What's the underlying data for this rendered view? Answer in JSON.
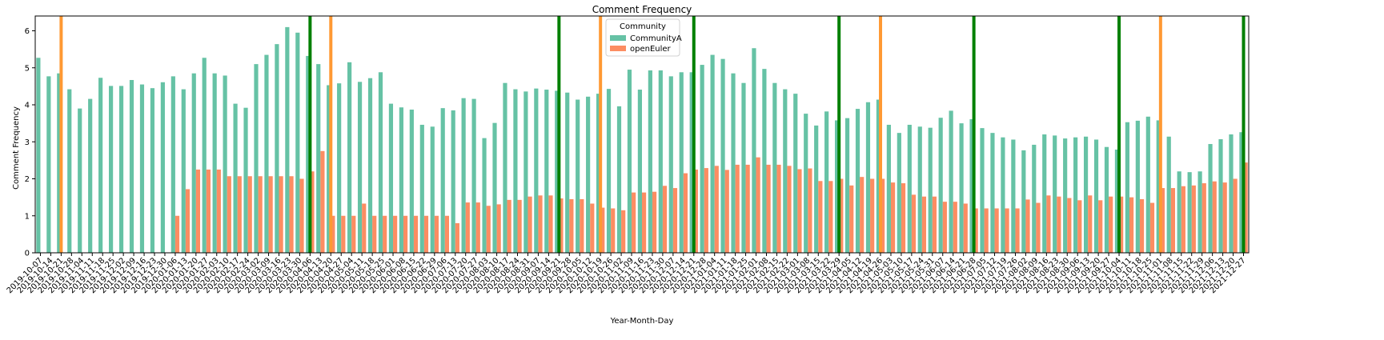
{
  "chart_data": {
    "type": "bar",
    "title": "Comment Frequency",
    "xlabel": "Year-Month-Day",
    "ylabel": "Comment Frequency",
    "ylim": [
      0,
      6.4
    ],
    "yticks": [
      0,
      1,
      2,
      3,
      4,
      5,
      6
    ],
    "grid": false,
    "legend": {
      "title": "Community",
      "placement": "top-center"
    },
    "categories": [
      "2019-10-07",
      "2019-10-14",
      "2019-10-21",
      "2019-10-28",
      "2019-11-04",
      "2019-11-11",
      "2019-11-18",
      "2019-11-25",
      "2019-12-02",
      "2019-12-09",
      "2019-12-16",
      "2019-12-23",
      "2019-12-30",
      "2020-01-06",
      "2020-01-13",
      "2020-01-20",
      "2020-01-27",
      "2020-02-03",
      "2020-02-10",
      "2020-02-17",
      "2020-02-24",
      "2020-03-02",
      "2020-03-09",
      "2020-03-16",
      "2020-03-23",
      "2020-03-30",
      "2020-04-06",
      "2020-04-13",
      "2020-04-20",
      "2020-04-27",
      "2020-05-04",
      "2020-05-11",
      "2020-05-18",
      "2020-05-25",
      "2020-06-01",
      "2020-06-08",
      "2020-06-15",
      "2020-06-22",
      "2020-06-29",
      "2020-07-06",
      "2020-07-13",
      "2020-07-20",
      "2020-07-27",
      "2020-08-03",
      "2020-08-10",
      "2020-08-17",
      "2020-08-24",
      "2020-08-31",
      "2020-09-07",
      "2020-09-14",
      "2020-09-21",
      "2020-09-28",
      "2020-10-05",
      "2020-10-12",
      "2020-10-19",
      "2020-10-26",
      "2020-11-02",
      "2020-11-09",
      "2020-11-16",
      "2020-11-23",
      "2020-11-30",
      "2020-12-07",
      "2020-12-14",
      "2020-12-21",
      "2020-12-28",
      "2021-01-04",
      "2021-01-11",
      "2021-01-18",
      "2021-01-25",
      "2021-02-01",
      "2021-02-08",
      "2021-02-15",
      "2021-02-22",
      "2021-03-01",
      "2021-03-08",
      "2021-03-15",
      "2021-03-22",
      "2021-03-29",
      "2021-04-05",
      "2021-04-12",
      "2021-04-19",
      "2021-04-26",
      "2021-05-03",
      "2021-05-10",
      "2021-05-17",
      "2021-05-24",
      "2021-05-31",
      "2021-06-07",
      "2021-06-14",
      "2021-06-21",
      "2021-06-28",
      "2021-07-05",
      "2021-07-12",
      "2021-07-19",
      "2021-07-26",
      "2021-08-02",
      "2021-08-09",
      "2021-08-16",
      "2021-08-23",
      "2021-08-30",
      "2021-09-06",
      "2021-09-13",
      "2021-09-20",
      "2021-09-27",
      "2021-10-04",
      "2021-10-11",
      "2021-10-18",
      "2021-10-25",
      "2021-11-01",
      "2021-11-08",
      "2021-11-15",
      "2021-11-22",
      "2021-11-29",
      "2021-12-06",
      "2021-12-13",
      "2021-12-20",
      "2021-12-27"
    ],
    "series": [
      {
        "name": "CommunityA",
        "color": "#66c2a5",
        "values": [
          5.27,
          4.77,
          4.85,
          4.42,
          3.9,
          4.16,
          4.73,
          4.51,
          4.51,
          4.67,
          4.55,
          4.45,
          4.61,
          4.77,
          4.42,
          4.85,
          5.27,
          4.85,
          4.79,
          4.03,
          3.92,
          5.1,
          5.35,
          5.64,
          6.1,
          5.95,
          5.32,
          5.1,
          4.53,
          4.58,
          5.15,
          4.62,
          4.72,
          4.88,
          4.03,
          3.93,
          3.87,
          3.46,
          3.41,
          3.91,
          3.85,
          4.18,
          4.16,
          3.1,
          3.51,
          4.59,
          4.42,
          4.36,
          4.44,
          4.41,
          4.38,
          4.33,
          4.14,
          4.22,
          4.3,
          4.43,
          3.96,
          4.95,
          4.41,
          4.93,
          4.93,
          4.77,
          4.88,
          4.88,
          5.08,
          5.35,
          5.24,
          4.85,
          4.59,
          5.53,
          4.97,
          4.59,
          4.42,
          4.3,
          3.76,
          3.44,
          3.82,
          3.58,
          3.64,
          3.89,
          4.07,
          4.14,
          3.46,
          3.24,
          3.46,
          3.41,
          3.38,
          3.65,
          3.84,
          3.5,
          3.61,
          3.37,
          3.24,
          3.12,
          3.06,
          2.77,
          2.92,
          3.2,
          3.17,
          3.09,
          3.12,
          3.14,
          3.06,
          2.86,
          2.79,
          3.53,
          3.57,
          3.68,
          3.58,
          3.14,
          2.2,
          2.18,
          2.2,
          2.94,
          3.07,
          3.2,
          3.26
        ]
      },
      {
        "name": "openEuler",
        "color": "#fc8d62",
        "values": [
          0,
          0,
          0,
          0,
          0,
          0,
          0,
          0,
          0,
          0,
          0,
          0,
          0,
          1.0,
          1.72,
          2.25,
          2.25,
          2.25,
          2.07,
          2.07,
          2.07,
          2.07,
          2.07,
          2.07,
          2.07,
          2.0,
          2.2,
          2.75,
          1.0,
          1.0,
          1.0,
          1.33,
          1.0,
          1.0,
          1.0,
          1.0,
          1.0,
          1.0,
          1.0,
          1.0,
          0.8,
          1.36,
          1.36,
          1.27,
          1.31,
          1.43,
          1.43,
          1.52,
          1.55,
          1.55,
          1.47,
          1.45,
          1.45,
          1.33,
          1.22,
          1.2,
          1.15,
          1.63,
          1.63,
          1.65,
          1.81,
          1.75,
          2.15,
          2.25,
          2.29,
          2.35,
          2.24,
          2.38,
          2.38,
          2.58,
          2.38,
          2.38,
          2.35,
          2.26,
          2.28,
          1.94,
          1.94,
          2.0,
          1.82,
          2.05,
          2.0,
          2.0,
          1.9,
          1.88,
          1.57,
          1.52,
          1.52,
          1.38,
          1.38,
          1.33,
          1.2,
          1.2,
          1.2,
          1.2,
          1.2,
          1.44,
          1.35,
          1.55,
          1.52,
          1.48,
          1.42,
          1.55,
          1.42,
          1.52,
          1.52,
          1.5,
          1.45,
          1.35,
          1.75,
          1.75,
          1.8,
          1.82,
          1.88,
          1.93,
          1.9,
          2.0,
          2.44
        ]
      }
    ],
    "vertical_lines": [
      {
        "x": "2019-10-21",
        "color": "#ff9933",
        "width": 4
      },
      {
        "x": "2020-04-06",
        "color": "#008000",
        "width": 4
      },
      {
        "x": "2020-04-20",
        "color": "#ff9933",
        "width": 4
      },
      {
        "x": "2020-09-21",
        "color": "#008000",
        "width": 4
      },
      {
        "x": "2020-10-19",
        "color": "#ff9933",
        "width": 4
      },
      {
        "x": "2020-12-21",
        "color": "#008000",
        "width": 4
      },
      {
        "x": "2021-03-29",
        "color": "#008000",
        "width": 4
      },
      {
        "x": "2021-04-26",
        "color": "#ff9933",
        "width": 4
      },
      {
        "x": "2021-06-28",
        "color": "#008000",
        "width": 4
      },
      {
        "x": "2021-10-04",
        "color": "#008000",
        "width": 4
      },
      {
        "x": "2021-11-01",
        "color": "#ff9933",
        "width": 4
      },
      {
        "x": "2021-12-27",
        "color": "#008000",
        "width": 4
      }
    ]
  }
}
